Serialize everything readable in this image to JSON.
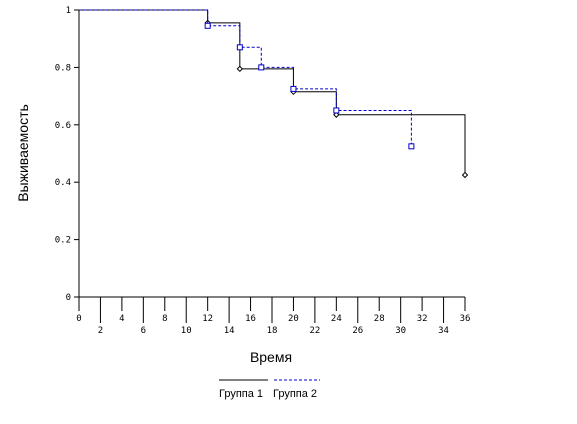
{
  "chart_data": {
    "type": "line",
    "subtype": "kaplan-meier-step",
    "xlabel": "Время",
    "ylabel": "Выживаемость",
    "xlim": [
      0,
      36
    ],
    "ylim": [
      0,
      1
    ],
    "x_ticks_upper": [
      "0",
      "4",
      "8",
      "12",
      "16",
      "20",
      "24",
      "28",
      "32",
      "36"
    ],
    "x_ticks_lower": [
      "2",
      "6",
      "10",
      "14",
      "18",
      "22",
      "26",
      "30",
      "34"
    ],
    "y_ticks": [
      "0",
      "0.2",
      "0.4",
      "0.6",
      "0.8",
      "1"
    ],
    "grid": false,
    "legend_position": "bottom-center",
    "series": [
      {
        "name": "Группа 1",
        "color": "#000000",
        "line_style": "solid",
        "marker": "diamond",
        "steps": [
          [
            0,
            1
          ],
          [
            12,
            0.955
          ],
          [
            15,
            0.795
          ],
          [
            20,
            0.715
          ],
          [
            24,
            0.635
          ],
          [
            36,
            0.425
          ]
        ],
        "markers": [
          [
            12,
            0.955
          ],
          [
            15,
            0.795
          ],
          [
            20,
            0.715
          ],
          [
            24,
            0.635
          ],
          [
            36,
            0.425
          ]
        ]
      },
      {
        "name": "Группа 2",
        "color": "#0000cc",
        "line_style": "dashed",
        "marker": "square",
        "steps": [
          [
            0,
            1
          ],
          [
            12,
            0.945
          ],
          [
            15,
            0.87
          ],
          [
            17,
            0.8
          ],
          [
            20,
            0.725
          ],
          [
            24,
            0.65
          ],
          [
            31,
            0.525
          ]
        ],
        "markers": [
          [
            12,
            0.945
          ],
          [
            15,
            0.87
          ],
          [
            17,
            0.8
          ],
          [
            20,
            0.725
          ],
          [
            24,
            0.65
          ],
          [
            31,
            0.525
          ]
        ]
      }
    ]
  }
}
